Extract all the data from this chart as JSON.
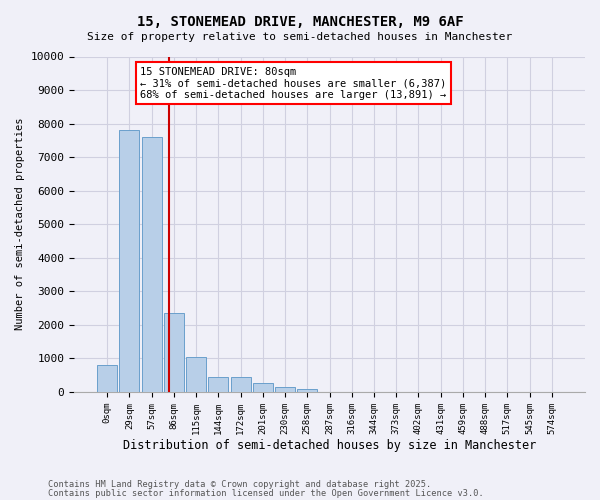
{
  "title1": "15, STONEMEAD DRIVE, MANCHESTER, M9 6AF",
  "title2": "Size of property relative to semi-detached houses in Manchester",
  "xlabel": "Distribution of semi-detached houses by size in Manchester",
  "ylabel": "Number of semi-detached properties",
  "bar_labels": [
    "0sqm",
    "29sqm",
    "57sqm",
    "86sqm",
    "115sqm",
    "144sqm",
    "172sqm",
    "201sqm",
    "230sqm",
    "258sqm",
    "287sqm",
    "316sqm",
    "344sqm",
    "373sqm",
    "402sqm",
    "431sqm",
    "459sqm",
    "488sqm",
    "517sqm",
    "545sqm",
    "574sqm"
  ],
  "bar_values": [
    800,
    7800,
    7600,
    2350,
    1050,
    450,
    450,
    260,
    150,
    100,
    0,
    0,
    0,
    0,
    0,
    0,
    0,
    0,
    0,
    0,
    0
  ],
  "bar_color": "#b8cfe8",
  "bar_edge_color": "#6aa0cc",
  "annotation_text": "15 STONEMEAD DRIVE: 80sqm\n← 31% of semi-detached houses are smaller (6,387)\n68% of semi-detached houses are larger (13,891) →",
  "vline_color": "#cc0000",
  "vline_x": 2.78,
  "ylim": [
    0,
    10000
  ],
  "yticks": [
    0,
    1000,
    2000,
    3000,
    4000,
    5000,
    6000,
    7000,
    8000,
    9000,
    10000
  ],
  "footer1": "Contains HM Land Registry data © Crown copyright and database right 2025.",
  "footer2": "Contains public sector information licensed under the Open Government Licence v3.0.",
  "bg_color": "#f0f0f8",
  "grid_color": "#d0d0e0"
}
